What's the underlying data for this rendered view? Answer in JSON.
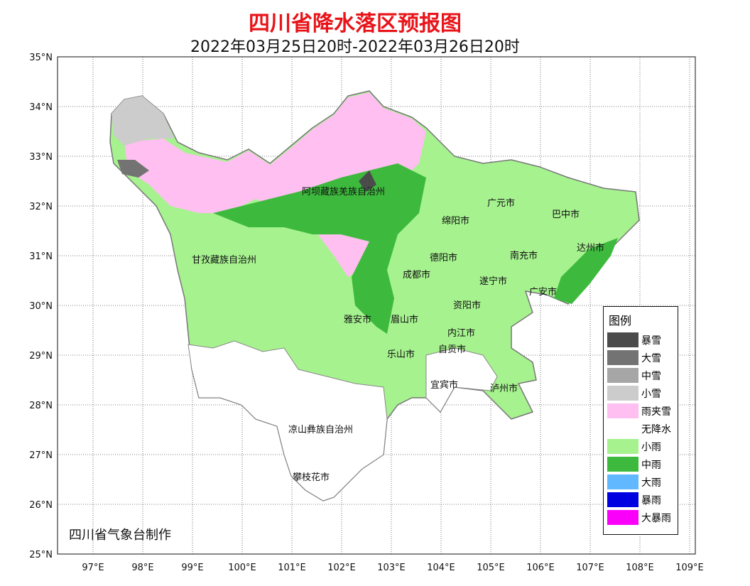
{
  "title": "四川省降水落区预报图",
  "subtitle": "2022年03月25日20时-2022年03月26日20时",
  "credit": "四川省气象台制作",
  "axes": {
    "lon_ticks": [
      "97°E",
      "98°E",
      "99°E",
      "100°E",
      "101°E",
      "102°E",
      "103°E",
      "104°E",
      "105°E",
      "106°E",
      "107°E",
      "108°E",
      "109°E"
    ],
    "lat_ticks": [
      "35°N",
      "34°N",
      "33°N",
      "32°N",
      "31°N",
      "30°N",
      "29°N",
      "28°N",
      "27°N",
      "26°N",
      "25°N"
    ]
  },
  "regions": [
    "阿坝藏族羌族自治州",
    "甘孜藏族自治州",
    "凉山彝族自治州",
    "广元市",
    "巴中市",
    "绵阳市",
    "德阳市",
    "南充市",
    "达州市",
    "成都市",
    "遂宁市",
    "广安市",
    "雅安市",
    "眉山市",
    "资阳市",
    "内江市",
    "乐山市",
    "自贡市",
    "宜宾市",
    "泸州市",
    "攀枝花市"
  ],
  "legend": {
    "title": "图例",
    "items": [
      {
        "label": "暴雪",
        "color": "#4b4b4b"
      },
      {
        "label": "大雪",
        "color": "#737373"
      },
      {
        "label": "中雪",
        "color": "#a6a6a6"
      },
      {
        "label": "小雪",
        "color": "#cccccc"
      },
      {
        "label": "雨夹雪",
        "color": "#ffbff0"
      },
      {
        "label": "无降水",
        "color": "#ffffff"
      },
      {
        "label": "小雨",
        "color": "#a6f28f"
      },
      {
        "label": "中雨",
        "color": "#3dba3d"
      },
      {
        "label": "大雨",
        "color": "#61b8ff"
      },
      {
        "label": "暴雨",
        "color": "#0000e1"
      },
      {
        "label": "大暴雨",
        "color": "#fa00fa"
      }
    ]
  }
}
